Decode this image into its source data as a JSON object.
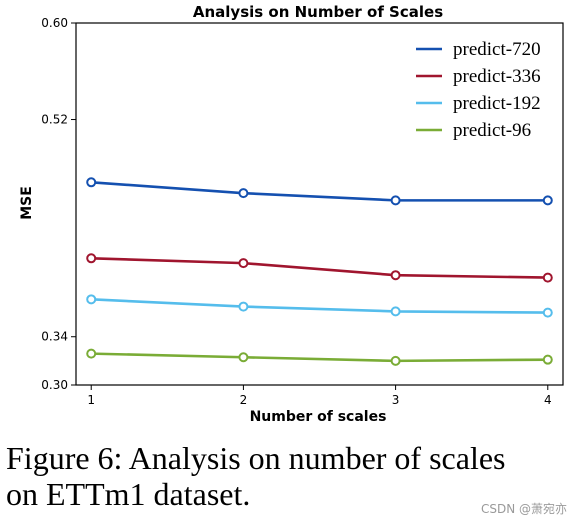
{
  "chart_data": {
    "type": "line",
    "title": "Analysis on Number of Scales",
    "xlabel": "Number of scales",
    "ylabel": "MSE",
    "x": [
      1,
      2,
      3,
      4
    ],
    "xticks": [
      "1",
      "2",
      "3",
      "4"
    ],
    "yticks": [
      0.3,
      0.34,
      0.52,
      0.6
    ],
    "ytick_labels": [
      "0.30",
      "0.34",
      "0.52",
      "0.60"
    ],
    "xlim": [
      0.9,
      4.1
    ],
    "ylim": [
      0.3,
      0.6
    ],
    "grid": false,
    "legend_position": "top-right",
    "series": [
      {
        "name": "predict-720",
        "color": "#1450b0",
        "values": [
          0.468,
          0.459,
          0.453,
          0.453
        ]
      },
      {
        "name": "predict-336",
        "color": "#a0152e",
        "values": [
          0.405,
          0.401,
          0.391,
          0.389
        ]
      },
      {
        "name": "predict-192",
        "color": "#55bdec",
        "values": [
          0.371,
          0.365,
          0.361,
          0.36
        ]
      },
      {
        "name": "predict-96",
        "color": "#7aac36",
        "values": [
          0.326,
          0.323,
          0.32,
          0.321
        ]
      }
    ]
  },
  "caption": {
    "line1": "Figure 6: Analysis on number of scales",
    "line2": "on ETTm1 dataset."
  },
  "watermark": "CSDN @萧宛亦"
}
